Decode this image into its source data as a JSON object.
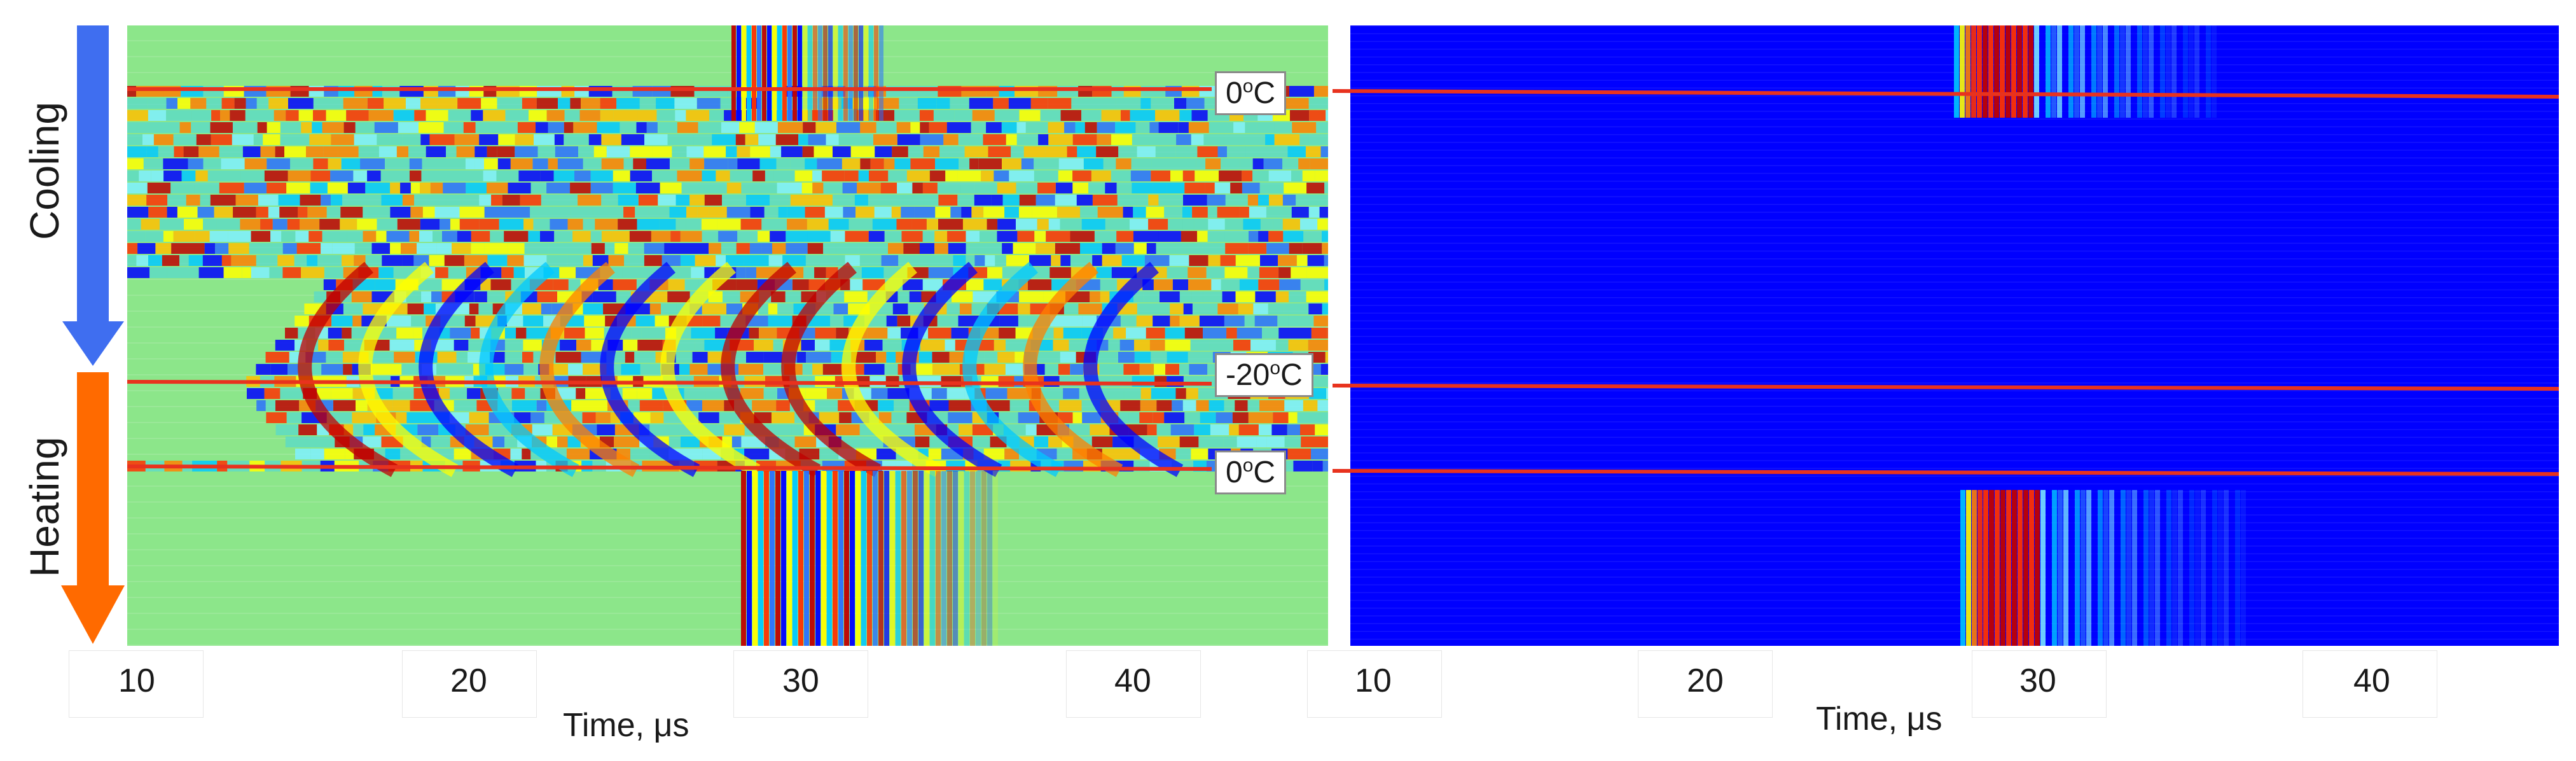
{
  "chart_data": [
    {
      "type": "heatmap",
      "panel": "left",
      "xlabel": "Time, μs",
      "x_ticks": [
        "10",
        "20",
        "30",
        "40"
      ],
      "xlim": [
        9,
        46
      ],
      "row_groups": [
        {
          "label": "Cooling",
          "direction": "down",
          "color": "#3f6ef0"
        },
        {
          "label": "Heating",
          "direction": "down",
          "color": "#ff6a00"
        }
      ],
      "temperature_markers": [
        "0",
        "-20",
        "0"
      ],
      "temperature_unit": "°C",
      "marker_line_color": "#e8321e",
      "background_color": "#8ce68a",
      "colormap": [
        "#0000ff",
        "#00c8ff",
        "#ffff00",
        "#ff8000",
        "#c00000"
      ]
    },
    {
      "type": "heatmap",
      "panel": "right",
      "xlabel": "Time, μs",
      "x_ticks": [
        "10",
        "20",
        "30",
        "40"
      ],
      "xlim": [
        9,
        46
      ],
      "background_color": "#0000ff",
      "marker_line_color": "#e8321e"
    }
  ],
  "labels": {
    "cooling": "Cooling",
    "heating": "Heating",
    "xlabel_left": "Time, μs",
    "xlabel_right": "Time, μs",
    "tick_10": "10",
    "tick_20": "20",
    "tick_30": "30",
    "tick_40": "40",
    "temp_top": "0",
    "temp_mid": "-20",
    "temp_bottom": "0",
    "temp_unit_sup": "o",
    "temp_unit_c": "C"
  }
}
